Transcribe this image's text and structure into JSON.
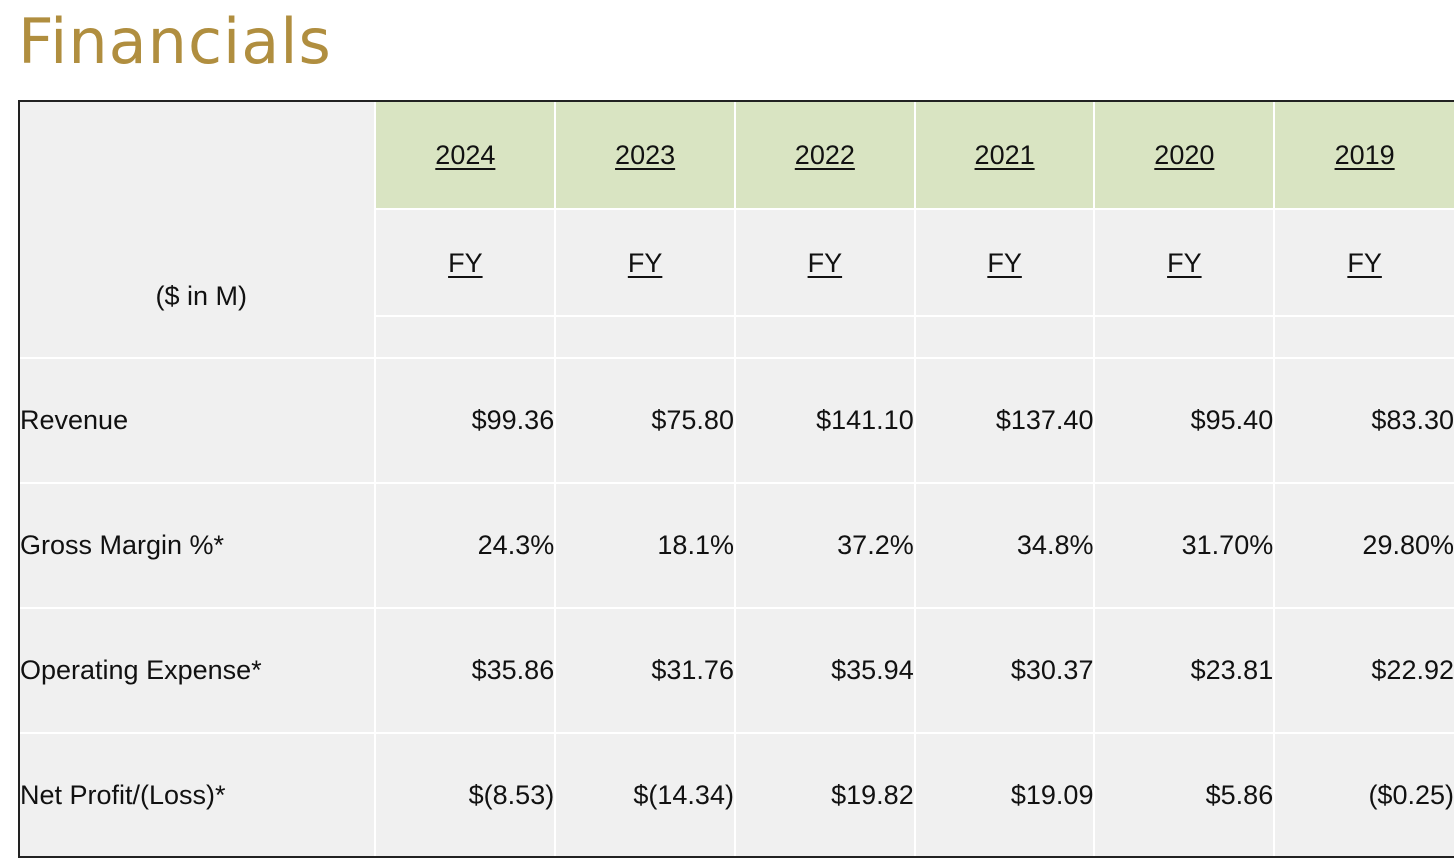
{
  "page": {
    "title": "Financials"
  },
  "table": {
    "units_label": "($ in M)",
    "years": [
      "2024",
      "2023",
      "2022",
      "2021",
      "2020",
      "2019"
    ],
    "periods": [
      "FY",
      "FY",
      "FY",
      "FY",
      "FY",
      "FY"
    ],
    "rows": [
      {
        "label": "Revenue",
        "values": [
          "$99.36",
          "$75.80",
          "$141.10",
          "$137.40",
          "$95.40",
          "$83.30"
        ]
      },
      {
        "label": "Gross Margin %*",
        "values": [
          "24.3%",
          "18.1%",
          "37.2%",
          "34.8%",
          "31.70%",
          "29.80%"
        ]
      },
      {
        "label": "Operating Expense*",
        "values": [
          "$35.86",
          "$31.76",
          "$35.94",
          "$30.37",
          "$23.81",
          "$22.92"
        ]
      },
      {
        "label": "Net Profit/(Loss)*",
        "values": [
          "$(8.53)",
          "$(14.34)",
          "$19.82",
          "$19.09",
          "$5.86",
          "($0.25)"
        ]
      }
    ]
  },
  "colors": {
    "title": "#b08e3f",
    "header_fill": "#d9e4c2",
    "cell_fill": "#f0f0f0"
  }
}
